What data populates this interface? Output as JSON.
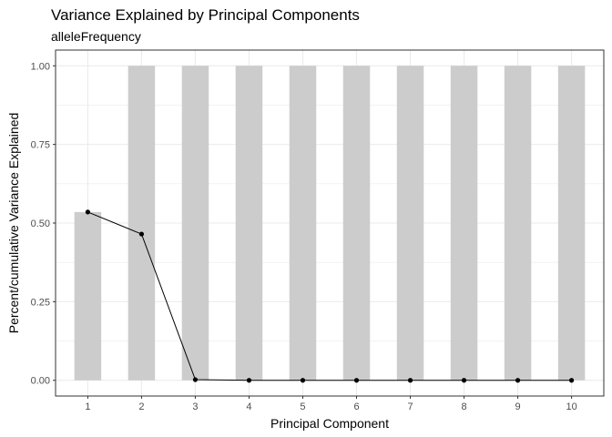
{
  "chart_data": {
    "type": "bar",
    "title": "Variance Explained by Principal Components",
    "subtitle": "alleleFrequency",
    "xlabel": "Principal Component",
    "ylabel": "Percent/cumulative Variance Explained",
    "categories": [
      "1",
      "2",
      "3",
      "4",
      "5",
      "6",
      "7",
      "8",
      "9",
      "10"
    ],
    "ylim": [
      -0.05,
      1.05
    ],
    "yticks": [
      0.0,
      0.25,
      0.5,
      0.75,
      1.0
    ],
    "ytick_labels": [
      "0.00",
      "0.25",
      "0.50",
      "0.75",
      "1.00"
    ],
    "grid": true,
    "series": [
      {
        "kind": "bar",
        "color": "#cccccc",
        "values": [
          0.535,
          1.0,
          1.0,
          1.0,
          1.0,
          1.0,
          1.0,
          1.0,
          1.0,
          1.0
        ]
      },
      {
        "kind": "line",
        "color": "#000000",
        "values": [
          0.535,
          0.465,
          0.002,
          0.0,
          0.0,
          0.0,
          0.0,
          0.0,
          0.0,
          0.0
        ]
      }
    ]
  }
}
